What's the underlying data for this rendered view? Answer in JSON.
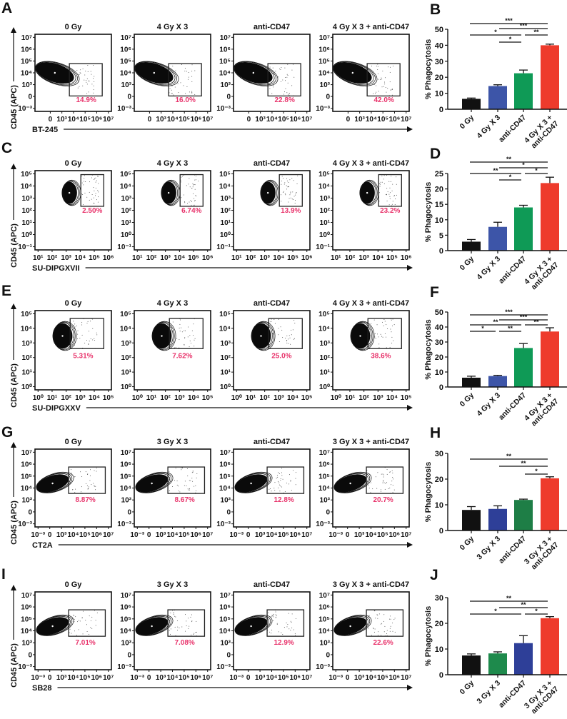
{
  "panel_letters": {
    "A": "A",
    "B": "B",
    "C": "C",
    "D": "D",
    "E": "E",
    "F": "F",
    "G": "G",
    "H": "H",
    "I": "I",
    "J": "J"
  },
  "flow_rows": [
    {
      "panel": "A",
      "x_axis_label": "BT-245",
      "y_axis_label": "CD45 (APC)",
      "y_ticks": [
        "10⁷",
        "10⁶",
        "10⁵",
        "10⁴",
        "10³",
        "0",
        "10⁻³"
      ],
      "x_ticks": [
        "0",
        "10³",
        "10⁴",
        "10⁵",
        "10⁶",
        "10⁷"
      ],
      "conditions": [
        "0 Gy",
        "4 Gy X 3",
        "anti-CD47",
        "4 Gy X 3 + anti-CD47"
      ],
      "gate_percent": [
        "14.9%",
        "16.0%",
        "22.8%",
        "42.0%"
      ]
    },
    {
      "panel": "C",
      "x_axis_label": "SU-DIPGXVII",
      "y_axis_label": "CD45 (APC)",
      "y_ticks": [
        "10⁵",
        "10⁴",
        "10³",
        "10²",
        "10¹",
        "10⁰",
        "10⁻¹"
      ],
      "x_ticks": [
        "10¹",
        "10²",
        "10³",
        "10⁴",
        "10⁵",
        "10⁶"
      ],
      "conditions": [
        "0 Gy",
        "4 Gy X 3",
        "anti-CD47",
        "4 Gy X 3 + anti-CD47"
      ],
      "gate_percent": [
        "2.50%",
        "6.74%",
        "13.9%",
        "23.2%"
      ]
    },
    {
      "panel": "E",
      "x_axis_label": "SU-DIPGXXV",
      "y_axis_label": "CD45 (APC)",
      "y_ticks": [
        "10⁵",
        "10⁴",
        "10³",
        "10²",
        "10¹",
        "10⁰"
      ],
      "x_ticks": [
        "10⁰",
        "10¹",
        "10²",
        "10³",
        "10⁴",
        "10⁵"
      ],
      "conditions": [
        "0 Gy",
        "4 Gy X 3",
        "anti-CD47",
        "4 Gy X 3 + anti-CD47"
      ],
      "gate_percent": [
        "5.31%",
        "7.62%",
        "25.0%",
        "38.6%"
      ]
    },
    {
      "panel": "G",
      "x_axis_label": "CT2A",
      "y_axis_label": "CD45 (APC)",
      "y_ticks": [
        "10⁷",
        "10⁶",
        "10⁵",
        "10⁴",
        "10³",
        "0",
        "10⁻³"
      ],
      "x_ticks": [
        "10⁻³",
        "0",
        "10³",
        "10⁴",
        "10⁵",
        "10⁶",
        "10⁷"
      ],
      "conditions": [
        "0 Gy",
        "3 Gy X 3",
        "anti-CD47",
        "3 Gy X 3 + anti-CD47"
      ],
      "gate_percent": [
        "8.87%",
        "8.67%",
        "12.8%",
        "20.7%"
      ]
    },
    {
      "panel": "I",
      "x_axis_label": "SB28",
      "y_axis_label": "CD45 (APC)",
      "y_ticks": [
        "10⁷",
        "10⁶",
        "10⁵",
        "10⁴",
        "10³",
        "0",
        "10⁻³"
      ],
      "x_ticks": [
        "10⁻³",
        "0",
        "10³",
        "10⁴",
        "10⁵",
        "10⁶",
        "10⁷"
      ],
      "conditions": [
        "0 Gy",
        "3 Gy X 3",
        "anti-CD47",
        "3 Gy X 3 + anti-CD47"
      ],
      "gate_percent": [
        "7.01%",
        "7.08%",
        "12.9%",
        "22.6%"
      ]
    }
  ],
  "chart_data": [
    {
      "panel": "B",
      "type": "bar",
      "ylabel": "% Phagocytosis",
      "ylim": [
        0,
        50
      ],
      "yticks": [
        0,
        10,
        20,
        30,
        40,
        50
      ],
      "categories": [
        "0 Gy",
        "4 Gy X 3",
        "anti-CD47",
        "4 Gy X 3 + anti-CD47"
      ],
      "values": [
        6.5,
        14.5,
        22.5,
        40.0
      ],
      "errors": [
        0.5,
        0.8,
        2.0,
        0.7
      ],
      "colors": [
        "#111111",
        "#3d55a8",
        "#0f9a56",
        "#ee3b2c"
      ],
      "significance": [
        [
          1,
          2,
          "*"
        ],
        [
          0,
          2,
          "*"
        ],
        [
          2,
          3,
          "**"
        ],
        [
          1,
          3,
          "***"
        ],
        [
          0,
          3,
          "***"
        ]
      ]
    },
    {
      "panel": "D",
      "type": "bar",
      "ylabel": "% Phagocytosis",
      "ylim": [
        0,
        25
      ],
      "yticks": [
        0,
        5,
        10,
        15,
        20,
        25
      ],
      "categories": [
        "0 Gy",
        "4 Gy X 3",
        "anti-CD47",
        "4 Gy X 3 + anti-CD47"
      ],
      "values": [
        2.9,
        7.7,
        14.0,
        21.9
      ],
      "errors": [
        0.7,
        1.5,
        0.7,
        1.9
      ],
      "colors": [
        "#111111",
        "#3d55a8",
        "#0f9a56",
        "#ee3b2c"
      ],
      "significance": [
        [
          1,
          2,
          "*"
        ],
        [
          0,
          2,
          "**"
        ],
        [
          2,
          3,
          "*"
        ],
        [
          1,
          3,
          "*"
        ],
        [
          0,
          3,
          "**"
        ]
      ]
    },
    {
      "panel": "F",
      "type": "bar",
      "ylabel": "% Phagocytosis",
      "ylim": [
        0,
        50
      ],
      "yticks": [
        0,
        10,
        20,
        30,
        40,
        50
      ],
      "categories": [
        "0 Gy",
        "4 Gy X 3",
        "anti-CD47",
        "4 Gy X 3 + anti-CD47"
      ],
      "values": [
        6.2,
        7.3,
        26.0,
        37.0
      ],
      "errors": [
        1.0,
        0.5,
        3.0,
        2.5
      ],
      "colors": [
        "#111111",
        "#3d55a8",
        "#0f9a56",
        "#ee3b2c"
      ],
      "significance": [
        [
          0,
          1,
          "*"
        ],
        [
          1,
          2,
          "**"
        ],
        [
          0,
          2,
          "**"
        ],
        [
          2,
          3,
          "**"
        ],
        [
          1,
          3,
          "***"
        ],
        [
          0,
          3,
          "***"
        ]
      ]
    },
    {
      "panel": "H",
      "type": "bar",
      "ylabel": "% Phagocytosis",
      "ylim": [
        0,
        30
      ],
      "yticks": [
        0,
        10,
        20,
        30
      ],
      "categories": [
        "0 Gy",
        "3 Gy X 3",
        "anti-CD47",
        "3 Gy X 3 + anti-CD47"
      ],
      "values": [
        8.0,
        8.4,
        11.9,
        20.3
      ],
      "errors": [
        1.3,
        1.2,
        0.3,
        0.6
      ],
      "colors": [
        "#111111",
        "#2e3f98",
        "#1e7e46",
        "#ee3b2c"
      ],
      "significance": [
        [
          2,
          3,
          "*"
        ],
        [
          1,
          3,
          "**"
        ],
        [
          0,
          3,
          "**"
        ]
      ]
    },
    {
      "panel": "J",
      "type": "bar",
      "ylabel": "% Phagocytosis",
      "ylim": [
        0,
        30
      ],
      "yticks": [
        0,
        10,
        20,
        30
      ],
      "categories": [
        "0 Gy",
        "3 Gy X 3",
        "anti-CD47",
        "3 Gy X 3 + anti-CD47"
      ],
      "values": [
        7.5,
        8.3,
        12.3,
        22.0
      ],
      "errors": [
        0.6,
        0.6,
        2.9,
        0.6
      ],
      "colors": [
        "#111111",
        "#1e8a4c",
        "#2e3f98",
        "#ee3b2c"
      ],
      "significance": [
        [
          0,
          2,
          "*"
        ],
        [
          2,
          3,
          "*"
        ],
        [
          1,
          3,
          "**"
        ],
        [
          0,
          3,
          "**"
        ]
      ]
    }
  ],
  "colors": {
    "gate_percent": "#e8336b",
    "axis": "#111111"
  }
}
